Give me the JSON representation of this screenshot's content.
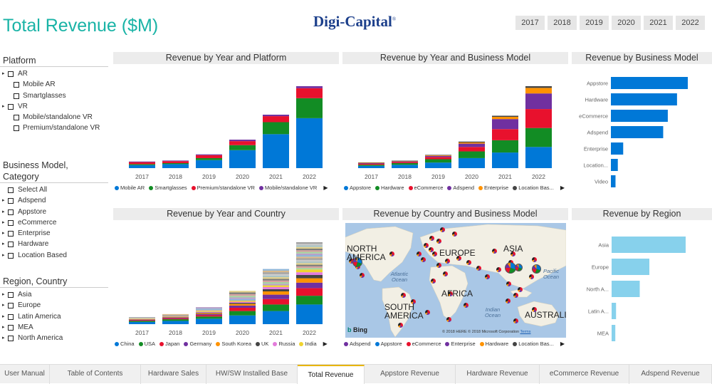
{
  "header": {
    "title": "Total Revenue ($M)",
    "logo_text": "Digi-Capital",
    "logo_mark": "®",
    "years": [
      "2017",
      "2018",
      "2019",
      "2020",
      "2021",
      "2022"
    ]
  },
  "slicers": {
    "platform": {
      "title": "Platform",
      "items": [
        {
          "label": "AR",
          "level": 0,
          "expand": true
        },
        {
          "label": "Mobile AR",
          "level": 1
        },
        {
          "label": "Smartglasses",
          "level": 1
        },
        {
          "label": "VR",
          "level": 0,
          "expand": true
        },
        {
          "label": "Mobile/standalone VR",
          "level": 1
        },
        {
          "label": "Premium/standalone VR",
          "level": 1
        }
      ]
    },
    "business_model": {
      "title_line1": "Business Model,",
      "title_line2": "Category",
      "items": [
        {
          "label": "Select All",
          "level": 0,
          "expand": false
        },
        {
          "label": "Adspend",
          "level": 0,
          "expand": true
        },
        {
          "label": "Appstore",
          "level": 0,
          "expand": true
        },
        {
          "label": "eCommerce",
          "level": 0,
          "expand": true
        },
        {
          "label": "Enterprise",
          "level": 0,
          "expand": true
        },
        {
          "label": "Hardware",
          "level": 0,
          "expand": true
        },
        {
          "label": "Location Based",
          "level": 0,
          "expand": true
        }
      ]
    },
    "region": {
      "title": "Region, Country",
      "items": [
        {
          "label": "Asia",
          "level": 0,
          "expand": true
        },
        {
          "label": "Europe",
          "level": 0,
          "expand": true
        },
        {
          "label": "Latin America",
          "level": 0,
          "expand": true
        },
        {
          "label": "MEA",
          "level": 0,
          "expand": true
        },
        {
          "label": "North America",
          "level": 0,
          "expand": true
        }
      ]
    }
  },
  "panels": {
    "year_platform": {
      "title": "Revenue by Year and Platform"
    },
    "year_business": {
      "title": "Revenue by Year and Business Model"
    },
    "business": {
      "title": "Revenue by Business Model"
    },
    "year_country": {
      "title": "Revenue by Year and Country"
    },
    "country_business": {
      "title": "Revenue by Country and Business Model"
    },
    "region": {
      "title": "Revenue by Region"
    }
  },
  "map": {
    "labels": [
      "NORTH AMERICA",
      "EUROPE",
      "ASIA",
      "AFRICA",
      "SOUTH AMERICA",
      "AUSTRALI"
    ],
    "oceans": [
      "Atlantic Ocean",
      "Pacific Ocean",
      "Indian Ocean"
    ],
    "bing": "Bing",
    "copyright": "© 2018 HERE © 2018 Microsoft Corporation",
    "terms": "Terms"
  },
  "colors": {
    "blue": "#0078d7",
    "green": "#128c24",
    "red": "#e8112d",
    "purple": "#7030a0",
    "orange": "#ff9200",
    "teal": "#19b3a6",
    "lightblue": "#87d1ec"
  },
  "chart_data": [
    {
      "type": "bar",
      "title": "Revenue by Year and Platform",
      "stacked": true,
      "categories": [
        "2017",
        "2018",
        "2019",
        "2020",
        "2021",
        "2022"
      ],
      "series": [
        {
          "name": "Mobile AR",
          "color": "#0078d7",
          "values": [
            3,
            4,
            8,
            18,
            34,
            50
          ]
        },
        {
          "name": "Smartglasses",
          "color": "#128c24",
          "values": [
            1,
            1,
            2,
            5,
            12,
            20
          ]
        },
        {
          "name": "Premium/standalone VR",
          "color": "#e8112d",
          "values": [
            2,
            2,
            3,
            4,
            6,
            10
          ]
        },
        {
          "name": "Mobile/standalone VR",
          "color": "#7030a0",
          "values": [
            0.6,
            0.6,
            0.8,
            1.5,
            1.5,
            2
          ]
        }
      ]
    },
    {
      "type": "bar",
      "title": "Revenue by Year and Business Model",
      "stacked": true,
      "categories": [
        "2017",
        "2018",
        "2019",
        "2020",
        "2021",
        "2022"
      ],
      "series": [
        {
          "name": "Appstore",
          "color": "#0078d7",
          "values": [
            2,
            3,
            5,
            9,
            14,
            19
          ]
        },
        {
          "name": "Hardware",
          "color": "#128c24",
          "values": [
            1,
            1.5,
            3,
            6,
            11,
            17
          ]
        },
        {
          "name": "eCommerce",
          "color": "#e8112d",
          "values": [
            1,
            1,
            2,
            4,
            10,
            17
          ]
        },
        {
          "name": "Adspend",
          "color": "#7030a0",
          "values": [
            0.5,
            0.6,
            1,
            3,
            9,
            14
          ]
        },
        {
          "name": "Enterprise",
          "color": "#ff9200",
          "values": [
            0.3,
            0.3,
            0.5,
            1,
            2,
            5
          ]
        },
        {
          "name": "Location Based",
          "color": "#444444",
          "values": [
            0.3,
            0.3,
            0.4,
            0.8,
            1,
            1.5
          ]
        }
      ]
    },
    {
      "type": "bar",
      "orientation": "horizontal",
      "title": "Revenue by Business Model",
      "categories": [
        "Appstore",
        "Hardware",
        "eCommerce",
        "Adspend",
        "Enterprise",
        "Location...",
        "Video"
      ],
      "values": [
        100,
        86,
        74,
        68,
        16,
        9,
        6
      ],
      "color": "#0078d7"
    },
    {
      "type": "bar",
      "title": "Revenue by Year and Country",
      "stacked": true,
      "categories": [
        "2017",
        "2018",
        "2019",
        "2020",
        "2021",
        "2022"
      ],
      "series": [
        {
          "name": "China",
          "color": "#0078d7",
          "values": [
            2,
            3,
            5,
            8,
            12,
            18
          ]
        },
        {
          "name": "USA",
          "color": "#128c24",
          "values": [
            1,
            1.5,
            2,
            4,
            6,
            8
          ]
        },
        {
          "name": "Japan",
          "color": "#e8112d",
          "values": [
            0.6,
            0.8,
            1.2,
            3,
            5,
            7
          ]
        },
        {
          "name": "Germany",
          "color": "#7030a0",
          "values": [
            0.4,
            0.6,
            1,
            2,
            4,
            5
          ]
        },
        {
          "name": "South Korea",
          "color": "#ff9200",
          "values": [
            0.3,
            0.4,
            0.8,
            1.5,
            3,
            4
          ]
        },
        {
          "name": "UK",
          "color": "#444444",
          "values": [
            0.2,
            0.3,
            0.6,
            1,
            2,
            3
          ]
        },
        {
          "name": "Russia",
          "color": "#e37cdb",
          "values": [
            0.2,
            0.3,
            0.5,
            1,
            2,
            2.5
          ]
        },
        {
          "name": "India",
          "color": "#f0d32e",
          "values": [
            0.2,
            0.3,
            0.5,
            1,
            1.5,
            2.5
          ]
        },
        {
          "name": "Other",
          "color": "#bbbbbb",
          "values": [
            1.5,
            2,
            4,
            9,
            15,
            25
          ]
        }
      ]
    },
    {
      "type": "bar",
      "orientation": "horizontal",
      "title": "Revenue by Region",
      "categories": [
        "Asia",
        "Europe",
        "North A...",
        "Latin A...",
        "MEA"
      ],
      "values": [
        100,
        51,
        38,
        6,
        5
      ],
      "color": "#87d1ec"
    }
  ],
  "legends": {
    "year_platform": [
      "Mobile AR",
      "Smartglasses",
      "Premium/standalone VR",
      "Mobile/standalone VR"
    ],
    "year_business": [
      "Appstore",
      "Hardware",
      "eCommerce",
      "Adspend",
      "Enterprise",
      "Location Bas..."
    ],
    "year_country": [
      "China",
      "USA",
      "Japan",
      "Germany",
      "South Korea",
      "UK",
      "Russia",
      "India"
    ],
    "country_business": [
      "Adspend",
      "Appstore",
      "eCommerce",
      "Enterprise",
      "Hardware",
      "Location Bas..."
    ],
    "more_arrow": "▶"
  },
  "tabs": [
    {
      "label": "User Manual",
      "active": false
    },
    {
      "label": "Table of Contents",
      "active": false
    },
    {
      "label": "Hardware Sales",
      "active": false
    },
    {
      "label": "HW/SW Installed Base",
      "active": false
    },
    {
      "label": "Total Revenue",
      "active": true
    },
    {
      "label": "Appstore Revenue",
      "active": false
    },
    {
      "label": "Hardware Revenue",
      "active": false
    },
    {
      "label": "eCommerce Revenue",
      "active": false
    },
    {
      "label": "Adspend Revenue",
      "active": false
    }
  ]
}
